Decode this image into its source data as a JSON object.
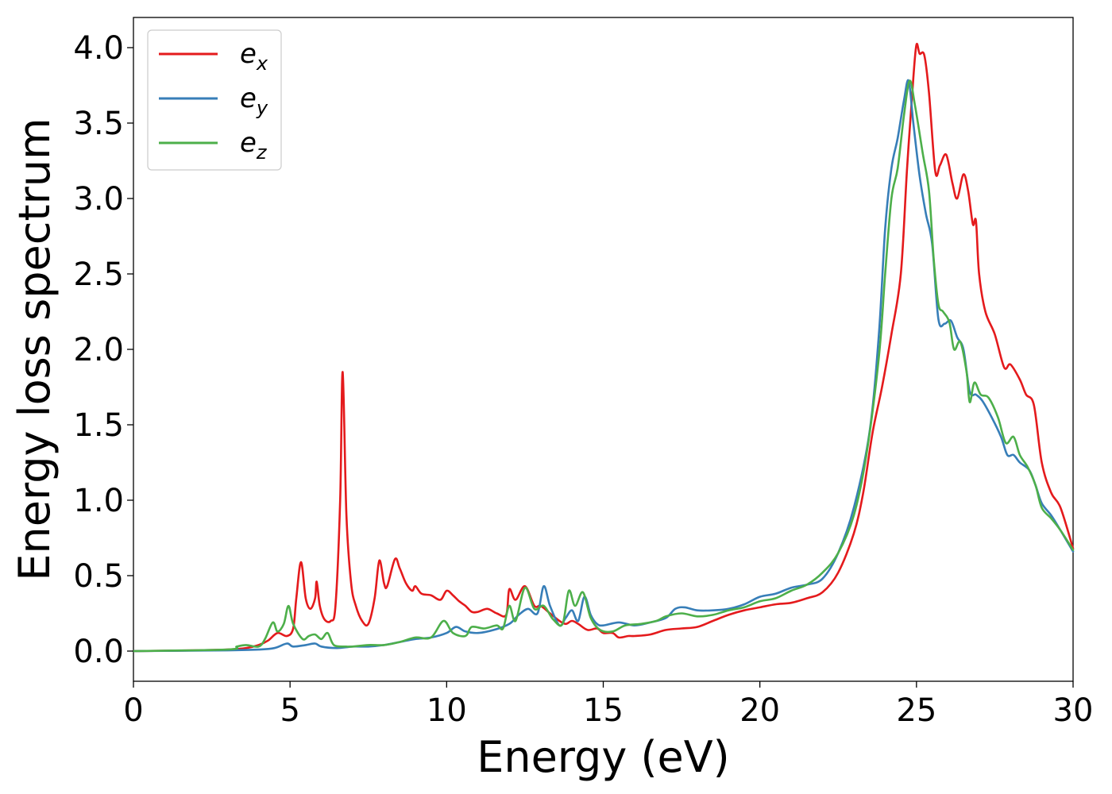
{
  "chart_data": {
    "type": "line",
    "xlabel": "Energy (eV)",
    "ylabel": "Energy loss spectrum",
    "xlim": [
      0,
      30
    ],
    "ylim": [
      -0.2,
      4.2
    ],
    "xticks": [
      0,
      5,
      10,
      15,
      20,
      25,
      30
    ],
    "xtick_labels": [
      "0",
      "5",
      "10",
      "15",
      "20",
      "25",
      "30"
    ],
    "yticks": [
      0.0,
      0.5,
      1.0,
      1.5,
      2.0,
      2.5,
      3.0,
      3.5,
      4.0
    ],
    "ytick_labels": [
      "0.0",
      "0.5",
      "1.0",
      "1.5",
      "2.0",
      "2.5",
      "3.0",
      "3.5",
      "4.0"
    ],
    "grid": false,
    "legend_position": "top-left",
    "series": [
      {
        "name": "x",
        "color": "#e41a1c",
        "points": [
          [
            0,
            0.0
          ],
          [
            2.0,
            0.005
          ],
          [
            3.0,
            0.01
          ],
          [
            3.6,
            0.02
          ],
          [
            4.0,
            0.04
          ],
          [
            4.3,
            0.07
          ],
          [
            4.6,
            0.12
          ],
          [
            4.9,
            0.1
          ],
          [
            5.1,
            0.15
          ],
          [
            5.2,
            0.35
          ],
          [
            5.35,
            0.59
          ],
          [
            5.5,
            0.35
          ],
          [
            5.65,
            0.28
          ],
          [
            5.8,
            0.35
          ],
          [
            5.85,
            0.46
          ],
          [
            5.95,
            0.3
          ],
          [
            6.1,
            0.21
          ],
          [
            6.3,
            0.2
          ],
          [
            6.45,
            0.3
          ],
          [
            6.6,
            1.0
          ],
          [
            6.68,
            1.85
          ],
          [
            6.8,
            0.9
          ],
          [
            6.95,
            0.45
          ],
          [
            7.1,
            0.3
          ],
          [
            7.3,
            0.2
          ],
          [
            7.5,
            0.18
          ],
          [
            7.7,
            0.35
          ],
          [
            7.85,
            0.6
          ],
          [
            8.0,
            0.45
          ],
          [
            8.1,
            0.43
          ],
          [
            8.35,
            0.61
          ],
          [
            8.5,
            0.55
          ],
          [
            8.7,
            0.45
          ],
          [
            8.9,
            0.4
          ],
          [
            9.0,
            0.43
          ],
          [
            9.2,
            0.38
          ],
          [
            9.5,
            0.37
          ],
          [
            9.8,
            0.34
          ],
          [
            10.0,
            0.4
          ],
          [
            10.2,
            0.37
          ],
          [
            10.4,
            0.33
          ],
          [
            10.6,
            0.3
          ],
          [
            10.8,
            0.26
          ],
          [
            11.0,
            0.26
          ],
          [
            11.3,
            0.28
          ],
          [
            11.6,
            0.25
          ],
          [
            11.9,
            0.24
          ],
          [
            12.0,
            0.41
          ],
          [
            12.2,
            0.34
          ],
          [
            12.5,
            0.43
          ],
          [
            12.8,
            0.3
          ],
          [
            13.0,
            0.3
          ],
          [
            13.3,
            0.25
          ],
          [
            13.6,
            0.2
          ],
          [
            13.8,
            0.18
          ],
          [
            14.0,
            0.2
          ],
          [
            14.2,
            0.18
          ],
          [
            14.5,
            0.14
          ],
          [
            14.8,
            0.15
          ],
          [
            15.0,
            0.12
          ],
          [
            15.3,
            0.12
          ],
          [
            15.5,
            0.09
          ],
          [
            15.8,
            0.1
          ],
          [
            16.0,
            0.1
          ],
          [
            16.5,
            0.11
          ],
          [
            17.0,
            0.14
          ],
          [
            17.5,
            0.15
          ],
          [
            18.0,
            0.16
          ],
          [
            18.5,
            0.2
          ],
          [
            19.0,
            0.24
          ],
          [
            19.5,
            0.27
          ],
          [
            20.0,
            0.29
          ],
          [
            20.5,
            0.31
          ],
          [
            21.0,
            0.32
          ],
          [
            21.5,
            0.35
          ],
          [
            22.0,
            0.39
          ],
          [
            22.5,
            0.52
          ],
          [
            23.0,
            0.78
          ],
          [
            23.3,
            1.05
          ],
          [
            23.6,
            1.45
          ],
          [
            23.9,
            1.75
          ],
          [
            24.2,
            2.1
          ],
          [
            24.5,
            2.5
          ],
          [
            24.7,
            3.2
          ],
          [
            24.9,
            3.8
          ],
          [
            25.0,
            4.02
          ],
          [
            25.1,
            3.96
          ],
          [
            25.25,
            3.95
          ],
          [
            25.4,
            3.7
          ],
          [
            25.6,
            3.18
          ],
          [
            25.75,
            3.22
          ],
          [
            25.95,
            3.29
          ],
          [
            26.15,
            3.1
          ],
          [
            26.3,
            3.0
          ],
          [
            26.5,
            3.16
          ],
          [
            26.65,
            3.05
          ],
          [
            26.8,
            2.83
          ],
          [
            26.9,
            2.85
          ],
          [
            27.0,
            2.5
          ],
          [
            27.2,
            2.25
          ],
          [
            27.5,
            2.1
          ],
          [
            27.8,
            1.88
          ],
          [
            28.0,
            1.9
          ],
          [
            28.3,
            1.8
          ],
          [
            28.5,
            1.7
          ],
          [
            28.75,
            1.63
          ],
          [
            29.0,
            1.25
          ],
          [
            29.3,
            1.05
          ],
          [
            29.6,
            0.95
          ],
          [
            30.0,
            0.68
          ]
        ]
      },
      {
        "name": "y",
        "color": "#377eb8",
        "points": [
          [
            0,
            0.0
          ],
          [
            3.0,
            0.005
          ],
          [
            4.0,
            0.01
          ],
          [
            4.5,
            0.02
          ],
          [
            4.9,
            0.05
          ],
          [
            5.1,
            0.03
          ],
          [
            5.5,
            0.04
          ],
          [
            5.8,
            0.05
          ],
          [
            6.0,
            0.03
          ],
          [
            6.5,
            0.02
          ],
          [
            7.0,
            0.03
          ],
          [
            7.5,
            0.03
          ],
          [
            8.0,
            0.04
          ],
          [
            8.5,
            0.06
          ],
          [
            9.0,
            0.08
          ],
          [
            9.5,
            0.09
          ],
          [
            10.0,
            0.12
          ],
          [
            10.3,
            0.16
          ],
          [
            10.6,
            0.13
          ],
          [
            11.0,
            0.12
          ],
          [
            11.5,
            0.14
          ],
          [
            12.0,
            0.18
          ],
          [
            12.3,
            0.24
          ],
          [
            12.6,
            0.28
          ],
          [
            12.9,
            0.25
          ],
          [
            13.1,
            0.43
          ],
          [
            13.3,
            0.3
          ],
          [
            13.6,
            0.17
          ],
          [
            13.8,
            0.22
          ],
          [
            14.0,
            0.27
          ],
          [
            14.2,
            0.2
          ],
          [
            14.4,
            0.36
          ],
          [
            14.6,
            0.24
          ],
          [
            14.8,
            0.18
          ],
          [
            15.0,
            0.17
          ],
          [
            15.5,
            0.19
          ],
          [
            16.0,
            0.17
          ],
          [
            16.5,
            0.19
          ],
          [
            17.0,
            0.22
          ],
          [
            17.3,
            0.28
          ],
          [
            17.6,
            0.29
          ],
          [
            18.0,
            0.27
          ],
          [
            18.5,
            0.27
          ],
          [
            19.0,
            0.28
          ],
          [
            19.5,
            0.31
          ],
          [
            20.0,
            0.36
          ],
          [
            20.5,
            0.38
          ],
          [
            21.0,
            0.42
          ],
          [
            21.5,
            0.44
          ],
          [
            22.0,
            0.48
          ],
          [
            22.5,
            0.65
          ],
          [
            23.0,
            0.95
          ],
          [
            23.5,
            1.45
          ],
          [
            23.8,
            2.1
          ],
          [
            24.0,
            2.8
          ],
          [
            24.2,
            3.2
          ],
          [
            24.4,
            3.4
          ],
          [
            24.6,
            3.65
          ],
          [
            24.75,
            3.78
          ],
          [
            24.9,
            3.5
          ],
          [
            25.1,
            3.15
          ],
          [
            25.3,
            2.9
          ],
          [
            25.5,
            2.7
          ],
          [
            25.7,
            2.2
          ],
          [
            25.9,
            2.17
          ],
          [
            26.1,
            2.19
          ],
          [
            26.3,
            2.08
          ],
          [
            26.5,
            2.0
          ],
          [
            26.7,
            1.72
          ],
          [
            26.9,
            1.7
          ],
          [
            27.1,
            1.66
          ],
          [
            27.4,
            1.55
          ],
          [
            27.7,
            1.42
          ],
          [
            27.9,
            1.3
          ],
          [
            28.1,
            1.3
          ],
          [
            28.3,
            1.25
          ],
          [
            28.6,
            1.2
          ],
          [
            28.8,
            1.1
          ],
          [
            29.0,
            0.98
          ],
          [
            29.3,
            0.9
          ],
          [
            29.6,
            0.8
          ],
          [
            30.0,
            0.66
          ]
        ]
      },
      {
        "name": "z",
        "color": "#4daf4a",
        "points": [
          [
            0,
            0.0
          ],
          [
            3.0,
            0.01
          ],
          [
            3.3,
            0.03
          ],
          [
            3.6,
            0.04
          ],
          [
            4.0,
            0.03
          ],
          [
            4.2,
            0.08
          ],
          [
            4.45,
            0.19
          ],
          [
            4.6,
            0.13
          ],
          [
            4.8,
            0.18
          ],
          [
            4.95,
            0.3
          ],
          [
            5.1,
            0.18
          ],
          [
            5.4,
            0.08
          ],
          [
            5.6,
            0.1
          ],
          [
            5.8,
            0.11
          ],
          [
            6.0,
            0.08
          ],
          [
            6.2,
            0.12
          ],
          [
            6.4,
            0.04
          ],
          [
            6.8,
            0.03
          ],
          [
            7.0,
            0.03
          ],
          [
            7.5,
            0.04
          ],
          [
            8.0,
            0.04
          ],
          [
            8.5,
            0.06
          ],
          [
            9.0,
            0.09
          ],
          [
            9.5,
            0.09
          ],
          [
            9.9,
            0.2
          ],
          [
            10.2,
            0.12
          ],
          [
            10.6,
            0.1
          ],
          [
            10.8,
            0.16
          ],
          [
            11.2,
            0.15
          ],
          [
            11.6,
            0.17
          ],
          [
            11.8,
            0.15
          ],
          [
            12.0,
            0.3
          ],
          [
            12.2,
            0.2
          ],
          [
            12.5,
            0.42
          ],
          [
            12.8,
            0.28
          ],
          [
            13.1,
            0.3
          ],
          [
            13.4,
            0.21
          ],
          [
            13.7,
            0.18
          ],
          [
            13.9,
            0.4
          ],
          [
            14.1,
            0.3
          ],
          [
            14.35,
            0.39
          ],
          [
            14.6,
            0.22
          ],
          [
            14.9,
            0.14
          ],
          [
            15.3,
            0.13
          ],
          [
            15.7,
            0.17
          ],
          [
            16.2,
            0.18
          ],
          [
            16.7,
            0.2
          ],
          [
            17.0,
            0.23
          ],
          [
            17.5,
            0.25
          ],
          [
            18.0,
            0.23
          ],
          [
            18.5,
            0.24
          ],
          [
            19.0,
            0.27
          ],
          [
            19.5,
            0.29
          ],
          [
            20.0,
            0.33
          ],
          [
            20.5,
            0.35
          ],
          [
            21.0,
            0.4
          ],
          [
            21.5,
            0.44
          ],
          [
            22.0,
            0.52
          ],
          [
            22.5,
            0.65
          ],
          [
            23.0,
            0.9
          ],
          [
            23.4,
            1.3
          ],
          [
            23.8,
            1.95
          ],
          [
            24.0,
            2.5
          ],
          [
            24.2,
            3.0
          ],
          [
            24.4,
            3.2
          ],
          [
            24.6,
            3.55
          ],
          [
            24.78,
            3.78
          ],
          [
            24.95,
            3.62
          ],
          [
            25.2,
            3.3
          ],
          [
            25.4,
            3.05
          ],
          [
            25.55,
            2.6
          ],
          [
            25.7,
            2.3
          ],
          [
            25.85,
            2.25
          ],
          [
            26.05,
            2.18
          ],
          [
            26.2,
            2.0
          ],
          [
            26.4,
            2.05
          ],
          [
            26.6,
            1.85
          ],
          [
            26.7,
            1.65
          ],
          [
            26.85,
            1.78
          ],
          [
            27.05,
            1.7
          ],
          [
            27.3,
            1.68
          ],
          [
            27.6,
            1.55
          ],
          [
            27.85,
            1.38
          ],
          [
            28.1,
            1.42
          ],
          [
            28.3,
            1.3
          ],
          [
            28.55,
            1.22
          ],
          [
            28.8,
            1.1
          ],
          [
            29.0,
            0.95
          ],
          [
            29.3,
            0.88
          ],
          [
            29.6,
            0.8
          ],
          [
            30.0,
            0.67
          ]
        ]
      }
    ]
  }
}
